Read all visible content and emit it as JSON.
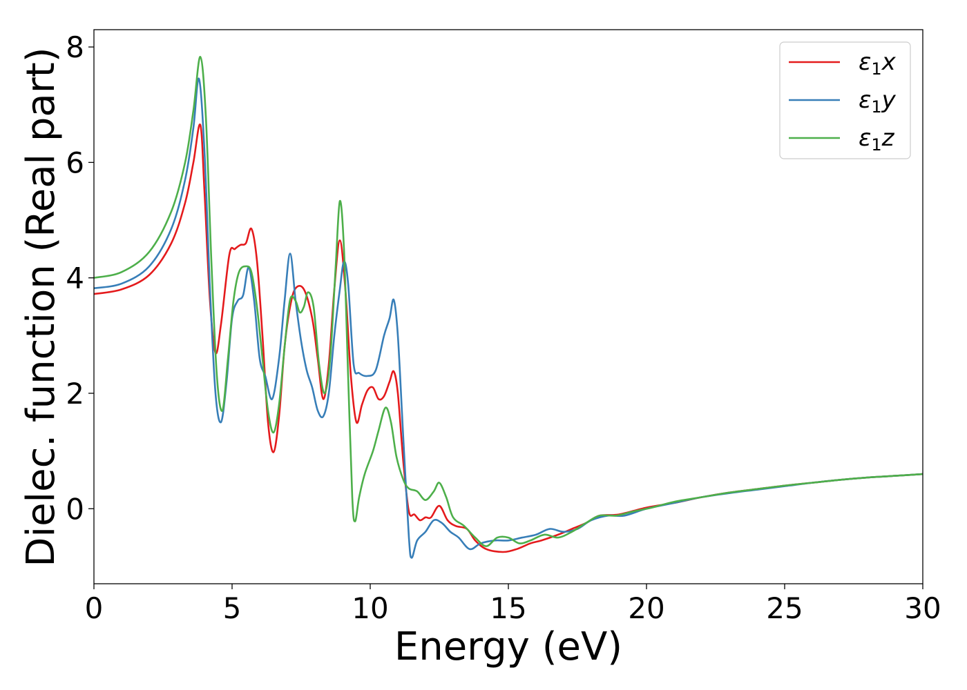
{
  "chart_data": {
    "type": "line",
    "xlabel": "Energy (eV)",
    "ylabel": "Dielec. function (Real part)",
    "xlim": [
      0,
      30
    ],
    "ylim": [
      -1.3,
      8.3
    ],
    "x_ticks": [
      0,
      5,
      10,
      15,
      20,
      25,
      30
    ],
    "x_tick_labels": [
      "0",
      "5",
      "10",
      "15",
      "20",
      "25",
      "30"
    ],
    "y_ticks": [
      0,
      2,
      4,
      6,
      8
    ],
    "y_tick_labels": [
      "0",
      "2",
      "4",
      "6",
      "8"
    ],
    "grid": false,
    "legend_position": "top-right",
    "series": [
      {
        "name": "ε1x",
        "legend_base": "ε",
        "legend_sub": "1",
        "legend_tail": "x",
        "color": "#e41a1c",
        "points": [
          [
            0,
            3.72
          ],
          [
            1,
            3.8
          ],
          [
            2,
            4.05
          ],
          [
            2.8,
            4.6
          ],
          [
            3.3,
            5.3
          ],
          [
            3.6,
            6.0
          ],
          [
            3.85,
            6.65
          ],
          [
            4.0,
            5.5
          ],
          [
            4.2,
            3.6
          ],
          [
            4.4,
            2.7
          ],
          [
            4.6,
            3.2
          ],
          [
            4.9,
            4.4
          ],
          [
            5.1,
            4.5
          ],
          [
            5.3,
            4.57
          ],
          [
            5.5,
            4.6
          ],
          [
            5.7,
            4.85
          ],
          [
            5.9,
            4.3
          ],
          [
            6.1,
            3.0
          ],
          [
            6.3,
            1.5
          ],
          [
            6.5,
            0.98
          ],
          [
            6.7,
            1.6
          ],
          [
            6.9,
            2.8
          ],
          [
            7.1,
            3.5
          ],
          [
            7.3,
            3.82
          ],
          [
            7.6,
            3.8
          ],
          [
            7.9,
            3.3
          ],
          [
            8.1,
            2.6
          ],
          [
            8.3,
            1.9
          ],
          [
            8.5,
            2.5
          ],
          [
            8.7,
            3.8
          ],
          [
            8.9,
            4.65
          ],
          [
            9.1,
            3.8
          ],
          [
            9.3,
            2.3
          ],
          [
            9.5,
            1.5
          ],
          [
            9.7,
            1.8
          ],
          [
            9.9,
            2.05
          ],
          [
            10.1,
            2.1
          ],
          [
            10.3,
            1.9
          ],
          [
            10.5,
            1.95
          ],
          [
            10.7,
            2.2
          ],
          [
            10.85,
            2.38
          ],
          [
            11.0,
            2.0
          ],
          [
            11.2,
            0.8
          ],
          [
            11.4,
            -0.05
          ],
          [
            11.6,
            -0.1
          ],
          [
            11.8,
            -0.2
          ],
          [
            12.0,
            -0.15
          ],
          [
            12.2,
            -0.15
          ],
          [
            12.5,
            0.05
          ],
          [
            12.8,
            -0.2
          ],
          [
            13.1,
            -0.3
          ],
          [
            13.5,
            -0.35
          ],
          [
            13.8,
            -0.55
          ],
          [
            14.2,
            -0.7
          ],
          [
            14.8,
            -0.75
          ],
          [
            15.3,
            -0.7
          ],
          [
            15.8,
            -0.6
          ],
          [
            16.2,
            -0.55
          ],
          [
            16.8,
            -0.45
          ],
          [
            17.3,
            -0.35
          ],
          [
            17.8,
            -0.25
          ],
          [
            18.3,
            -0.12
          ],
          [
            19.0,
            -0.1
          ],
          [
            20.0,
            0.02
          ],
          [
            21.0,
            0.1
          ],
          [
            22.0,
            0.2
          ],
          [
            23.0,
            0.28
          ],
          [
            24.0,
            0.34
          ],
          [
            25.0,
            0.4
          ],
          [
            26.0,
            0.45
          ],
          [
            27.0,
            0.5
          ],
          [
            28.0,
            0.54
          ],
          [
            29.0,
            0.57
          ],
          [
            30.0,
            0.6
          ]
        ]
      },
      {
        "name": "ε1y",
        "legend_base": "ε",
        "legend_sub": "1",
        "legend_tail": "y",
        "color": "#377eb8",
        "points": [
          [
            0,
            3.82
          ],
          [
            1,
            3.9
          ],
          [
            2,
            4.2
          ],
          [
            2.8,
            4.85
          ],
          [
            3.3,
            5.7
          ],
          [
            3.6,
            6.6
          ],
          [
            3.8,
            7.45
          ],
          [
            4.0,
            6.2
          ],
          [
            4.2,
            3.8
          ],
          [
            4.4,
            2.0
          ],
          [
            4.6,
            1.5
          ],
          [
            4.8,
            2.2
          ],
          [
            5.0,
            3.3
          ],
          [
            5.2,
            3.6
          ],
          [
            5.4,
            3.7
          ],
          [
            5.6,
            4.18
          ],
          [
            5.8,
            3.6
          ],
          [
            6.0,
            2.6
          ],
          [
            6.2,
            2.3
          ],
          [
            6.45,
            1.9
          ],
          [
            6.7,
            2.6
          ],
          [
            6.9,
            3.6
          ],
          [
            7.1,
            4.42
          ],
          [
            7.3,
            3.6
          ],
          [
            7.5,
            2.9
          ],
          [
            7.7,
            2.4
          ],
          [
            7.9,
            2.1
          ],
          [
            8.1,
            1.7
          ],
          [
            8.3,
            1.6
          ],
          [
            8.5,
            2.0
          ],
          [
            8.7,
            3.0
          ],
          [
            8.9,
            3.8
          ],
          [
            9.05,
            4.28
          ],
          [
            9.2,
            3.9
          ],
          [
            9.4,
            2.5
          ],
          [
            9.6,
            2.35
          ],
          [
            9.9,
            2.3
          ],
          [
            10.2,
            2.4
          ],
          [
            10.5,
            3.0
          ],
          [
            10.7,
            3.3
          ],
          [
            10.85,
            3.62
          ],
          [
            11.0,
            3.0
          ],
          [
            11.2,
            1.2
          ],
          [
            11.4,
            -0.5
          ],
          [
            11.5,
            -0.85
          ],
          [
            11.7,
            -0.55
          ],
          [
            12.0,
            -0.4
          ],
          [
            12.3,
            -0.2
          ],
          [
            12.6,
            -0.25
          ],
          [
            12.9,
            -0.4
          ],
          [
            13.2,
            -0.5
          ],
          [
            13.6,
            -0.7
          ],
          [
            14.0,
            -0.6
          ],
          [
            14.5,
            -0.55
          ],
          [
            15.0,
            -0.55
          ],
          [
            15.5,
            -0.5
          ],
          [
            16.0,
            -0.45
          ],
          [
            16.5,
            -0.35
          ],
          [
            17.0,
            -0.4
          ],
          [
            17.5,
            -0.35
          ],
          [
            18.0,
            -0.2
          ],
          [
            18.6,
            -0.12
          ],
          [
            19.2,
            -0.12
          ],
          [
            20.0,
            0.0
          ],
          [
            21.0,
            0.1
          ],
          [
            22.0,
            0.2
          ],
          [
            23.0,
            0.27
          ],
          [
            24.0,
            0.33
          ],
          [
            25.0,
            0.39
          ],
          [
            26.0,
            0.45
          ],
          [
            27.0,
            0.5
          ],
          [
            28.0,
            0.54
          ],
          [
            29.0,
            0.57
          ],
          [
            30.0,
            0.6
          ]
        ]
      },
      {
        "name": "ε1z",
        "legend_base": "ε",
        "legend_sub": "1",
        "legend_tail": "z",
        "color": "#4daf4a",
        "points": [
          [
            0,
            4.0
          ],
          [
            1,
            4.1
          ],
          [
            2,
            4.45
          ],
          [
            2.8,
            5.15
          ],
          [
            3.3,
            6.0
          ],
          [
            3.6,
            6.9
          ],
          [
            3.85,
            7.83
          ],
          [
            4.05,
            6.8
          ],
          [
            4.25,
            4.3
          ],
          [
            4.45,
            2.3
          ],
          [
            4.65,
            1.7
          ],
          [
            4.85,
            2.6
          ],
          [
            5.05,
            3.6
          ],
          [
            5.25,
            4.1
          ],
          [
            5.5,
            4.2
          ],
          [
            5.7,
            4.1
          ],
          [
            5.9,
            3.5
          ],
          [
            6.1,
            2.6
          ],
          [
            6.3,
            1.7
          ],
          [
            6.5,
            1.32
          ],
          [
            6.7,
            1.8
          ],
          [
            6.9,
            2.8
          ],
          [
            7.1,
            3.62
          ],
          [
            7.3,
            3.6
          ],
          [
            7.45,
            3.4
          ],
          [
            7.6,
            3.5
          ],
          [
            7.75,
            3.75
          ],
          [
            7.95,
            3.5
          ],
          [
            8.15,
            2.5
          ],
          [
            8.35,
            2.0
          ],
          [
            8.55,
            2.6
          ],
          [
            8.75,
            4.2
          ],
          [
            8.9,
            5.33
          ],
          [
            9.05,
            4.5
          ],
          [
            9.2,
            2.3
          ],
          [
            9.35,
            0.2
          ],
          [
            9.45,
            -0.22
          ],
          [
            9.6,
            0.2
          ],
          [
            9.8,
            0.6
          ],
          [
            10.1,
            1.0
          ],
          [
            10.3,
            1.35
          ],
          [
            10.55,
            1.75
          ],
          [
            10.75,
            1.5
          ],
          [
            10.95,
            0.9
          ],
          [
            11.2,
            0.5
          ],
          [
            11.4,
            0.35
          ],
          [
            11.7,
            0.3
          ],
          [
            12.0,
            0.15
          ],
          [
            12.3,
            0.3
          ],
          [
            12.5,
            0.45
          ],
          [
            12.75,
            0.2
          ],
          [
            13.0,
            -0.15
          ],
          [
            13.4,
            -0.3
          ],
          [
            13.8,
            -0.5
          ],
          [
            14.2,
            -0.65
          ],
          [
            14.6,
            -0.5
          ],
          [
            15.0,
            -0.5
          ],
          [
            15.4,
            -0.6
          ],
          [
            15.8,
            -0.55
          ],
          [
            16.3,
            -0.45
          ],
          [
            16.8,
            -0.5
          ],
          [
            17.3,
            -0.4
          ],
          [
            17.8,
            -0.25
          ],
          [
            18.3,
            -0.12
          ],
          [
            18.9,
            -0.12
          ],
          [
            19.5,
            -0.05
          ],
          [
            20.2,
            0.02
          ],
          [
            21.0,
            0.12
          ],
          [
            22.0,
            0.2
          ],
          [
            23.0,
            0.28
          ],
          [
            24.0,
            0.34
          ],
          [
            25.0,
            0.4
          ],
          [
            26.0,
            0.45
          ],
          [
            27.0,
            0.5
          ],
          [
            28.0,
            0.54
          ],
          [
            29.0,
            0.57
          ],
          [
            30.0,
            0.6
          ]
        ]
      }
    ]
  }
}
